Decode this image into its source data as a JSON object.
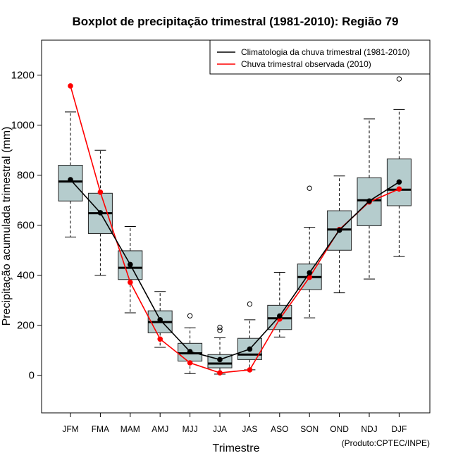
{
  "chart_data": {
    "type": "boxplot",
    "title": "Boxplot de precipitação trimestral (1981-2010): Região 79",
    "xlabel": "Trimestre",
    "ylabel": "Precipitação acumulada trimestral (mm)",
    "credit": "(Produto:CPTEC/INPE)",
    "ylim": [
      -150,
      1340
    ],
    "yticks": [
      0,
      200,
      400,
      600,
      800,
      1000,
      1200
    ],
    "ytick_labels": [
      "0",
      "200",
      "400",
      "600",
      "800",
      "1000",
      "1200"
    ],
    "categories": [
      "JFM",
      "FMA",
      "MAM",
      "AMJ",
      "MJJ",
      "JJA",
      "JAS",
      "ASO",
      "SON",
      "OND",
      "NDJ",
      "DJF"
    ],
    "boxes": [
      {
        "whisker_low": 553,
        "q1": 697,
        "median": 775,
        "q3": 840,
        "whisker_high": 1053,
        "outliers": []
      },
      {
        "whisker_low": 400,
        "q1": 567,
        "median": 648,
        "q3": 728,
        "whisker_high": 900,
        "outliers": []
      },
      {
        "whisker_low": 250,
        "q1": 383,
        "median": 430,
        "q3": 498,
        "whisker_high": 595,
        "outliers": []
      },
      {
        "whisker_low": 112,
        "q1": 170,
        "median": 213,
        "q3": 258,
        "whisker_high": 335,
        "outliers": []
      },
      {
        "whisker_low": 7,
        "q1": 57,
        "median": 88,
        "q3": 128,
        "whisker_high": 190,
        "outliers": [
          238
        ]
      },
      {
        "whisker_low": 5,
        "q1": 30,
        "median": 47,
        "q3": 83,
        "whisker_high": 150,
        "outliers": [
          180,
          192
        ]
      },
      {
        "whisker_low": 22,
        "q1": 63,
        "median": 83,
        "q3": 148,
        "whisker_high": 222,
        "outliers": [
          285
        ]
      },
      {
        "whisker_low": 153,
        "q1": 183,
        "median": 228,
        "q3": 280,
        "whisker_high": 412,
        "outliers": []
      },
      {
        "whisker_low": 230,
        "q1": 343,
        "median": 393,
        "q3": 445,
        "whisker_high": 592,
        "outliers": [
          748
        ]
      },
      {
        "whisker_low": 330,
        "q1": 500,
        "median": 583,
        "q3": 658,
        "whisker_high": 797,
        "outliers": []
      },
      {
        "whisker_low": 385,
        "q1": 598,
        "median": 700,
        "q3": 790,
        "whisker_high": 1025,
        "outliers": []
      },
      {
        "whisker_low": 475,
        "q1": 678,
        "median": 742,
        "q3": 865,
        "whisker_high": 1063,
        "outliers": [
          1185
        ]
      }
    ],
    "series": [
      {
        "name": "Climatologia da chuva trimestral (1981-2010)",
        "color": "#000000",
        "values": [
          782,
          650,
          443,
          222,
          95,
          63,
          105,
          237,
          410,
          580,
          697,
          773
        ]
      },
      {
        "name": "Chuva trimestral observada (2010)",
        "color": "#ff0000",
        "values": [
          1157,
          732,
          372,
          145,
          50,
          10,
          22,
          225,
          392,
          583,
          693,
          745
        ]
      }
    ],
    "box_fill": "#b5cccd",
    "legend_position": "top-right"
  }
}
